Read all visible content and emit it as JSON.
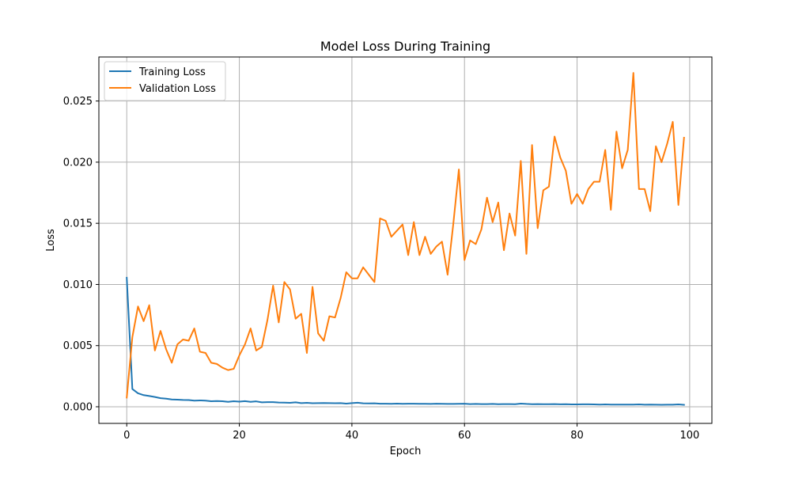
{
  "chart_data": {
    "type": "line",
    "title": "Model Loss During Training",
    "xlabel": "Epoch",
    "ylabel": "Loss",
    "xlim": [
      -4.95,
      103.95
    ],
    "ylim": [
      -0.00136,
      0.0286
    ],
    "x_ticks": [
      0,
      20,
      40,
      60,
      80,
      100
    ],
    "x_tick_labels": [
      "0",
      "20",
      "40",
      "60",
      "80",
      "100"
    ],
    "y_ticks": [
      0.0,
      0.005,
      0.01,
      0.015,
      0.02,
      0.025
    ],
    "y_tick_labels": [
      "0.000",
      "0.005",
      "0.010",
      "0.015",
      "0.020",
      "0.025"
    ],
    "grid": true,
    "legend_position": "top-left",
    "series": [
      {
        "name": "Training Loss",
        "color": "#1f77b4",
        "values": [
          0.01055,
          0.00145,
          0.0011,
          0.00095,
          0.00088,
          0.0008,
          0.0007,
          0.00066,
          0.0006,
          0.00058,
          0.00056,
          0.00055,
          0.0005,
          0.00052,
          0.0005,
          0.00045,
          0.00047,
          0.00045,
          0.0004,
          0.00045,
          0.00042,
          0.00046,
          0.0004,
          0.00044,
          0.00036,
          0.00038,
          0.00038,
          0.00035,
          0.00034,
          0.00032,
          0.00036,
          0.0003,
          0.00032,
          0.00029,
          0.0003,
          0.00031,
          0.0003,
          0.00029,
          0.0003,
          0.00026,
          0.0003,
          0.00033,
          0.00028,
          0.00027,
          0.00028,
          0.00025,
          0.00025,
          0.00024,
          0.00026,
          0.00024,
          0.00025,
          0.00025,
          0.00024,
          0.00024,
          0.00023,
          0.00025,
          0.00024,
          0.00023,
          0.00023,
          0.00024,
          0.00025,
          0.00022,
          0.00023,
          0.00022,
          0.00022,
          0.00023,
          0.00021,
          0.00022,
          0.00022,
          0.00021,
          0.00026,
          0.00023,
          0.00021,
          0.00022,
          0.00021,
          0.00021,
          0.00022,
          0.0002,
          0.00021,
          0.00019,
          0.00019,
          0.0002,
          0.0002,
          0.00019,
          0.00018,
          0.00019,
          0.00018,
          0.00018,
          0.00018,
          0.00018,
          0.00018,
          0.00019,
          0.00017,
          0.00018,
          0.00017,
          0.00016,
          0.00017,
          0.00017,
          0.00019,
          0.00016
        ]
      },
      {
        "name": "Validation Loss",
        "color": "#ff7f0e",
        "values": [
          0.00075,
          0.0057,
          0.0082,
          0.007,
          0.0083,
          0.0046,
          0.0062,
          0.0047,
          0.0036,
          0.0051,
          0.0055,
          0.0054,
          0.0064,
          0.0045,
          0.0044,
          0.0036,
          0.0035,
          0.0032,
          0.003,
          0.0031,
          0.0042,
          0.0051,
          0.0064,
          0.0046,
          0.0049,
          0.0071,
          0.0099,
          0.0069,
          0.0102,
          0.0096,
          0.0072,
          0.0076,
          0.0044,
          0.0098,
          0.006,
          0.0054,
          0.0074,
          0.0073,
          0.0089,
          0.011,
          0.0105,
          0.0105,
          0.0114,
          0.0108,
          0.0102,
          0.0154,
          0.0152,
          0.0139,
          0.0144,
          0.0149,
          0.0124,
          0.0151,
          0.0124,
          0.0139,
          0.0125,
          0.0131,
          0.0135,
          0.0108,
          0.0149,
          0.0194,
          0.012,
          0.0136,
          0.0133,
          0.0145,
          0.0171,
          0.0151,
          0.0167,
          0.0128,
          0.0158,
          0.014,
          0.0201,
          0.0125,
          0.0214,
          0.0146,
          0.0177,
          0.018,
          0.0221,
          0.0204,
          0.0193,
          0.0166,
          0.0174,
          0.0166,
          0.0178,
          0.0184,
          0.0184,
          0.021,
          0.0161,
          0.0225,
          0.0195,
          0.021,
          0.0273,
          0.0178,
          0.0178,
          0.016,
          0.0213,
          0.02,
          0.0215,
          0.0233,
          0.0165,
          0.022
        ]
      }
    ]
  }
}
